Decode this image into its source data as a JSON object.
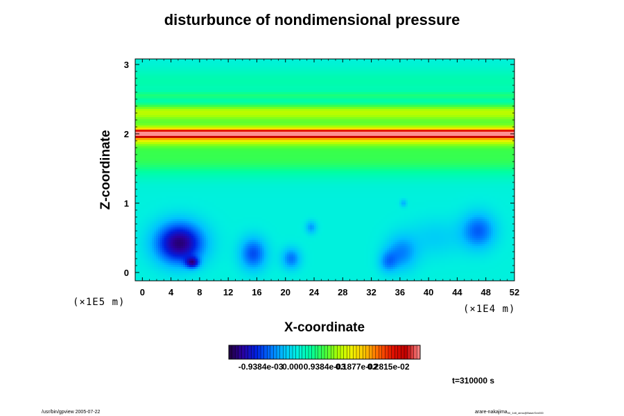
{
  "chart_data": {
    "type": "heatmap",
    "title": "disturbunce of nondimensional pressure",
    "xlabel": "X-coordinate",
    "ylabel": "Z-coordinate",
    "x_multiplier": "(×1E4 m)",
    "z_multiplier": "(×1E5 m)",
    "xlim": [
      -1,
      52
    ],
    "ylim": [
      -0.12,
      3.08
    ],
    "xticks": [
      0,
      4,
      8,
      12,
      16,
      20,
      24,
      28,
      32,
      36,
      40,
      44,
      48,
      52
    ],
    "yticks": [
      0,
      1,
      2,
      3
    ],
    "colorbar": {
      "labels": [
        "-0.9384e-03",
        "0.000",
        "0.9384e-03",
        "0.1877e-02",
        "0.2815e-02"
      ],
      "values": [
        -0.0009384,
        0.0,
        0.0009384,
        0.001877,
        0.002815
      ],
      "range": [
        -0.00188,
        0.00375
      ],
      "colors": [
        "#20003a",
        "#2a00a0",
        "#0020e0",
        "#0070ff",
        "#00c0ff",
        "#00f0e0",
        "#00ffa0",
        "#40ff40",
        "#b0ff00",
        "#f0f000",
        "#ffc000",
        "#ff6000",
        "#e01000",
        "#c00000",
        "#ff9090"
      ]
    },
    "background_value": 0.00015,
    "bands": [
      {
        "z": 2.0,
        "width": 0.06,
        "value": 0.0024
      },
      {
        "z": 2.05,
        "width": 0.2,
        "value": 0.0009
      },
      {
        "z": 2.32,
        "width": 0.12,
        "value": 0.0011
      },
      {
        "z": 2.55,
        "width": 0.06,
        "value": 0.0004
      },
      {
        "z": 1.65,
        "width": 0.25,
        "value": 0.0007
      },
      {
        "z": 1.95,
        "width": 0.12,
        "value": 0.0008
      },
      {
        "z": 2.75,
        "width": 0.2,
        "value": 0.0003
      }
    ],
    "anomalies": [
      {
        "x": 5.2,
        "z": 0.42,
        "rx": 4.3,
        "rz": 0.38,
        "value": -0.0018
      },
      {
        "x": 7.0,
        "z": 0.14,
        "rx": 1.2,
        "rz": 0.1,
        "value": -0.0012
      },
      {
        "x": 15.5,
        "z": 0.27,
        "rx": 2.4,
        "rz": 0.3,
        "value": -0.001
      },
      {
        "x": 20.8,
        "z": 0.2,
        "rx": 1.7,
        "rz": 0.2,
        "value": -0.0008
      },
      {
        "x": 23.6,
        "z": 0.65,
        "rx": 1.0,
        "rz": 0.12,
        "value": -0.0006
      },
      {
        "x": 34.3,
        "z": 0.15,
        "rx": 1.6,
        "rz": 0.2,
        "value": -0.0006
      },
      {
        "x": 36.2,
        "z": 0.28,
        "rx": 2.8,
        "rz": 0.32,
        "value": -0.0007
      },
      {
        "x": 47.0,
        "z": 0.6,
        "rx": 3.0,
        "rz": 0.33,
        "value": -0.0009
      },
      {
        "x": 36.5,
        "z": 1.0,
        "rx": 0.6,
        "rz": 0.07,
        "value": -0.0005
      },
      {
        "x": 41.0,
        "z": 0.5,
        "rx": 5.0,
        "rz": 0.35,
        "value": -0.0003
      }
    ],
    "time_label": "t=310000 s"
  },
  "footer": {
    "left": "/usr/bin/gpview 2005-07-22",
    "right": "arare-nakajima",
    "right_sub": "00_1e8_airno@Base/Grn000"
  }
}
